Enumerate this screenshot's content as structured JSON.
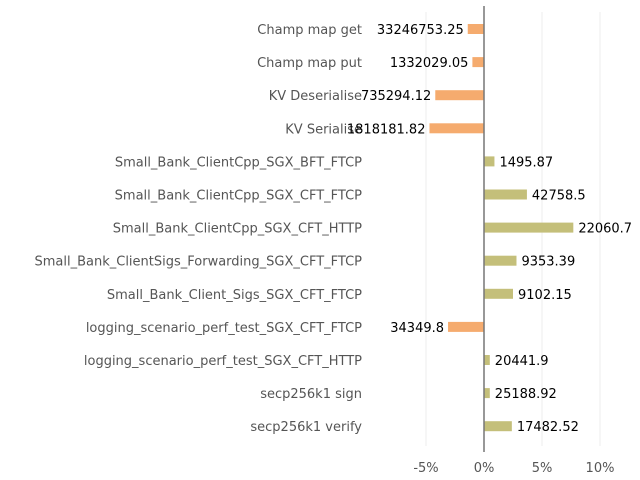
{
  "chart_data": {
    "type": "bar",
    "orientation": "horizontal",
    "categories": [
      "Champ map get",
      "Champ map put",
      "KV Deserialise",
      "KV Serialise",
      "Small_Bank_ClientCpp_SGX_BFT_FTCP",
      "Small_Bank_ClientCpp_SGX_CFT_FTCP",
      "Small_Bank_ClientCpp_SGX_CFT_HTTP",
      "Small_Bank_ClientSigs_Forwarding_SGX_CFT_FTCP",
      "Small_Bank_Client_Sigs_SGX_CFT_FTCP",
      "logging_scenario_perf_test_SGX_CFT_FTCP",
      "logging_scenario_perf_test_SGX_CFT_HTTP",
      "secp256k1 sign",
      "secp256k1 verify"
    ],
    "values": [
      -1.4,
      -1.0,
      -4.2,
      -4.7,
      0.9,
      3.7,
      7.7,
      2.8,
      2.5,
      -3.1,
      0.5,
      0.5,
      2.4
    ],
    "data_labels": [
      "33246753.25",
      "1332029.05",
      "735294.12",
      "1818181.82",
      "1495.87",
      "42758.5",
      "22060.7",
      "9353.39",
      "9102.15",
      "34349.8",
      "20441.9",
      "25188.92",
      "17482.52"
    ],
    "xlim": [
      -8.5,
      11
    ],
    "xticks": [
      -5,
      0,
      5,
      10
    ],
    "xtick_labels": [
      "-5%",
      "0%",
      "5%",
      "10%"
    ],
    "colors": {
      "negative": "#f5ab6e",
      "positive": "#c4bf7a"
    },
    "grid": "vertical"
  }
}
